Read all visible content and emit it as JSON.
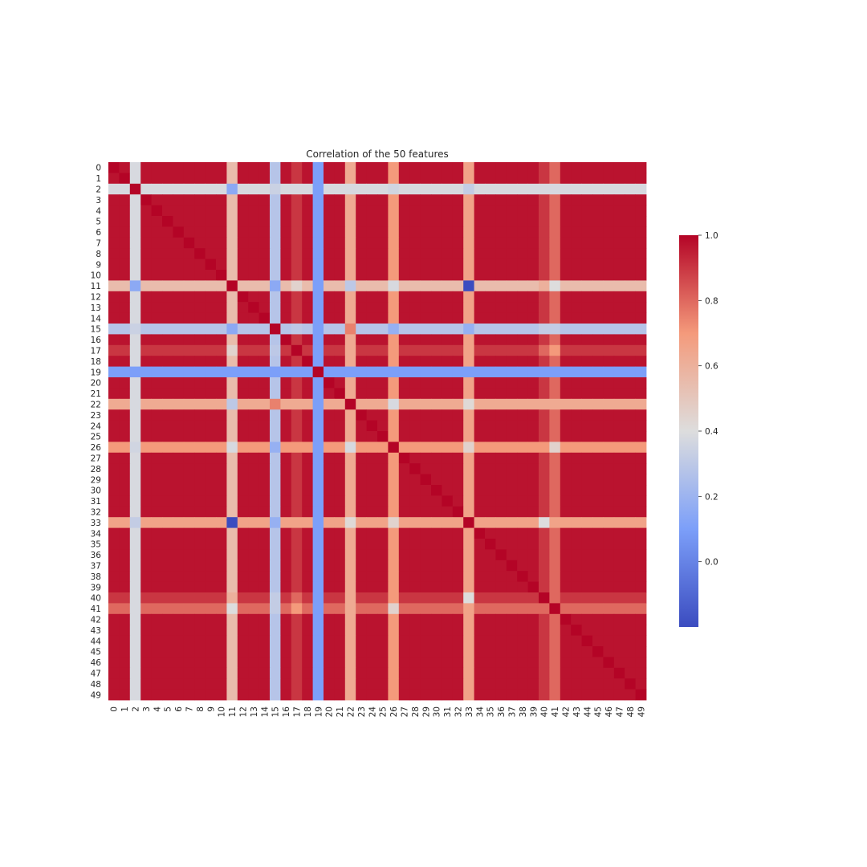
{
  "chart_data": {
    "type": "heatmap",
    "title": "Correlation of the 50 features",
    "xlabel": "",
    "ylabel": "",
    "labels": [
      "0",
      "1",
      "2",
      "3",
      "4",
      "5",
      "6",
      "7",
      "8",
      "9",
      "10",
      "11",
      "12",
      "13",
      "14",
      "15",
      "16",
      "17",
      "18",
      "19",
      "20",
      "21",
      "22",
      "23",
      "24",
      "25",
      "26",
      "27",
      "28",
      "29",
      "30",
      "31",
      "32",
      "33",
      "34",
      "35",
      "36",
      "37",
      "38",
      "39",
      "40",
      "41",
      "42",
      "43",
      "44",
      "45",
      "46",
      "47",
      "48",
      "49"
    ],
    "x_tick_labels_shown": [
      "0",
      "1",
      "2",
      "3",
      "4",
      "5",
      "6",
      "7",
      "8",
      "9",
      "10",
      "11",
      "12",
      "13",
      "14",
      "15",
      "16",
      "17",
      "18",
      "19",
      "20",
      "21",
      "22",
      "23",
      "24",
      "25",
      "26",
      "27",
      "28",
      "29",
      "30",
      "31",
      "32",
      "33",
      "34",
      "35",
      "36",
      "37",
      "38",
      "39",
      "40",
      "41",
      "42",
      "43",
      "44",
      "45",
      "46",
      "47",
      "48",
      "49"
    ],
    "y_tick_labels_shown": [
      "0",
      "1",
      "2",
      "3",
      "4",
      "5",
      "6",
      "7",
      "8",
      "9",
      "10",
      "11",
      "12",
      "13",
      "14",
      "15",
      "16",
      "17",
      "18",
      "19",
      "20",
      "21",
      "22",
      "23",
      "24",
      "25",
      "26",
      "27",
      "28",
      "29",
      "30",
      "31",
      "32",
      "33",
      "34",
      "35",
      "36",
      "37",
      "38",
      "39",
      "40",
      "41",
      "42",
      "43",
      "44",
      "45",
      "46",
      "47",
      "48",
      "49"
    ],
    "feature_corr_with_core": {
      "2": 0.38,
      "11": 0.55,
      "15": 0.28,
      "17": 0.9,
      "19": 0.1,
      "22": 0.63,
      "26": 0.7,
      "33": 0.66,
      "40": 0.9,
      "41": 0.8
    },
    "pair_overrides": [
      {
        "a": 2,
        "b": 11,
        "v": 0.15
      },
      {
        "a": 2,
        "b": 15,
        "v": 0.34
      },
      {
        "a": 2,
        "b": 26,
        "v": 0.36
      },
      {
        "a": 2,
        "b": 33,
        "v": 0.32
      },
      {
        "a": 11,
        "b": 15,
        "v": 0.15
      },
      {
        "a": 11,
        "b": 17,
        "v": 0.45
      },
      {
        "a": 11,
        "b": 22,
        "v": 0.3
      },
      {
        "a": 11,
        "b": 26,
        "v": 0.38
      },
      {
        "a": 11,
        "b": 33,
        "v": -0.2
      },
      {
        "a": 11,
        "b": 40,
        "v": 0.6
      },
      {
        "a": 11,
        "b": 41,
        "v": 0.4
      },
      {
        "a": 15,
        "b": 17,
        "v": 0.3
      },
      {
        "a": 15,
        "b": 22,
        "v": 0.75
      },
      {
        "a": 15,
        "b": 26,
        "v": 0.18
      },
      {
        "a": 15,
        "b": 33,
        "v": 0.18
      },
      {
        "a": 15,
        "b": 40,
        "v": 0.32
      },
      {
        "a": 15,
        "b": 41,
        "v": 0.32
      },
      {
        "a": 19,
        "b": 2,
        "v": 0.1
      },
      {
        "a": 22,
        "b": 26,
        "v": 0.38
      },
      {
        "a": 22,
        "b": 33,
        "v": 0.42
      },
      {
        "a": 26,
        "b": 33,
        "v": 0.45
      },
      {
        "a": 26,
        "b": 41,
        "v": 0.45
      },
      {
        "a": 33,
        "b": 40,
        "v": 0.4
      },
      {
        "a": 40,
        "b": 41,
        "v": 0.8
      },
      {
        "a": 17,
        "b": 40,
        "v": 0.8
      },
      {
        "a": 17,
        "b": 41,
        "v": 0.7
      }
    ],
    "diagonal": 1.0,
    "colorbar": {
      "colormap": "coolwarm",
      "vmin": -0.2,
      "vmax": 1.0,
      "ticks": [
        0.0,
        0.2,
        0.4,
        0.6,
        0.8,
        1.0
      ],
      "tick_labels": [
        "0.0",
        "0.2",
        "0.4",
        "0.6",
        "0.8",
        "1.0"
      ]
    },
    "grid": false,
    "legend": "colorbar-right"
  }
}
